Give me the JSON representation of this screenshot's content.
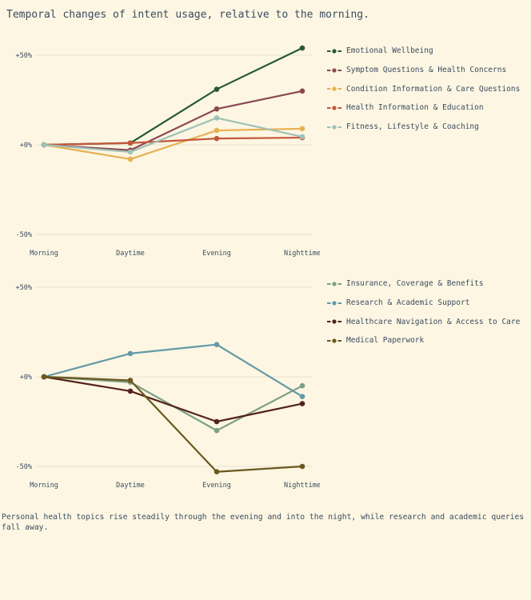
{
  "title": "Temporal changes of intent usage, relative to the morning.",
  "caption": "Personal health topics rise steadily through the evening and into the night, while research and academic queries fall away.",
  "colors": {
    "background": "#fcf6e3",
    "text": "#3c4c5e",
    "gridline": "#e8e1d0"
  },
  "chart_data": [
    {
      "type": "line",
      "title": "",
      "xlabel": "",
      "ylabel": "",
      "categories": [
        "Morning",
        "Daytime",
        "Evening",
        "Nighttime"
      ],
      "ytick_labels": [
        "+50%",
        "+0%",
        "-50%"
      ],
      "ytick_values": [
        50,
        0,
        -50
      ],
      "ylim": [
        -62,
        62
      ],
      "grid": true,
      "legend_position": "right",
      "series": [
        {
          "name": "Emotional Wellbeing",
          "color": "#275939",
          "values": [
            0,
            1,
            31,
            54
          ]
        },
        {
          "name": "Symptom Questions & Health Concerns",
          "color": "#8c4852",
          "values": [
            0,
            -3,
            20,
            30
          ]
        },
        {
          "name": "Condition Information & Care Questions",
          "color": "#e8b052",
          "values": [
            0,
            -8,
            8,
            9
          ]
        },
        {
          "name": "Health Information & Education",
          "color": "#c3573a",
          "values": [
            0,
            1,
            3.5,
            4
          ]
        },
        {
          "name": "Fitness, Lifestyle & Coaching",
          "color": "#9fc2b6",
          "values": [
            0,
            -4,
            15,
            4.5
          ]
        }
      ]
    },
    {
      "type": "line",
      "title": "",
      "xlabel": "",
      "ylabel": "",
      "categories": [
        "Morning",
        "Daytime",
        "Evening",
        "Nighttime"
      ],
      "ytick_labels": [
        "+50%",
        "+0%",
        "-50%"
      ],
      "ytick_values": [
        50,
        0,
        -50
      ],
      "ylim": [
        -62,
        62
      ],
      "grid": true,
      "legend_position": "right",
      "series": [
        {
          "name": "Insurance, Coverage & Benefits",
          "color": "#7d9f85",
          "values": [
            0,
            -3,
            -30,
            -5
          ]
        },
        {
          "name": "Research & Academic Support",
          "color": "#649aa4",
          "values": [
            0,
            13,
            18,
            -11
          ]
        },
        {
          "name": "Healthcare Navigation & Access to Care",
          "color": "#54231a",
          "values": [
            0,
            -8,
            -25,
            -15
          ]
        },
        {
          "name": "Medical Paperwork",
          "color": "#6b581f",
          "values": [
            0,
            -2,
            -53,
            -50
          ]
        }
      ]
    }
  ]
}
